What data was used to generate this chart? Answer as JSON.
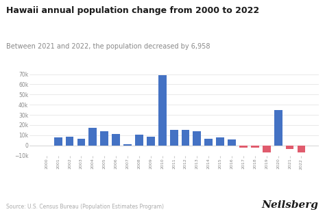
{
  "title": "Hawaii annual population change from 2000 to 2022",
  "subtitle": "Between 2021 and 2022, the population decreased by 6,958",
  "source": "Source: U.S. Census Bureau (Population Estimates Program)",
  "watermark": "Neilsberg",
  "years": [
    2000,
    2001,
    2002,
    2003,
    2004,
    2005,
    2006,
    2007,
    2008,
    2009,
    2010,
    2011,
    2012,
    2013,
    2014,
    2015,
    2016,
    2017,
    2018,
    2019,
    2020,
    2021,
    2022
  ],
  "values": [
    0,
    7500,
    8700,
    6500,
    17000,
    14000,
    11000,
    1000,
    10500,
    8500,
    69000,
    15500,
    15500,
    14000,
    6500,
    7500,
    6000,
    -2000,
    -2500,
    -7000,
    35000,
    -3500,
    -6958
  ],
  "color_positive": "#4472c4",
  "color_negative": "#e05b6d",
  "background_color": "#ffffff",
  "ylim": [
    -10000,
    75000
  ],
  "yticks": [
    -10000,
    0,
    10000,
    20000,
    30000,
    40000,
    50000,
    60000,
    70000
  ],
  "title_fontsize": 9.0,
  "subtitle_fontsize": 7.0,
  "source_fontsize": 5.5,
  "watermark_fontsize": 11
}
